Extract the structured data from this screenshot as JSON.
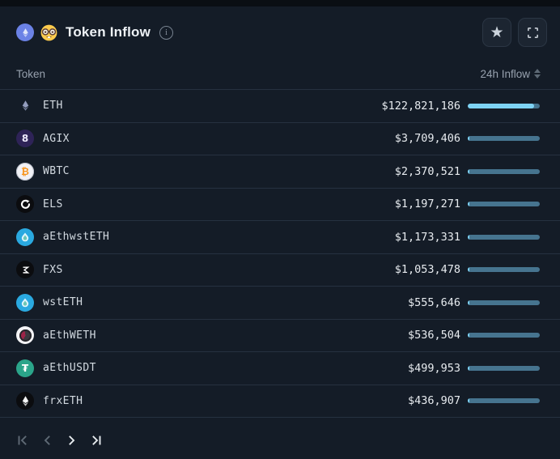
{
  "header": {
    "title": "Token Inflow",
    "title_icons": [
      "eth-coin-badge",
      "nerd-face-emoji"
    ],
    "info_glyph": "i"
  },
  "toolbar": {
    "star_glyph": "★",
    "buttons": [
      "favorite",
      "expand"
    ]
  },
  "table": {
    "columns": {
      "token": "Token",
      "inflow": "24h Inflow"
    },
    "bar": {
      "fill": "#7ed3f4",
      "track": "#46748f",
      "max": 122821186,
      "max_fill_pct": 92,
      "min_fill_pct": 2
    },
    "rows": [
      {
        "symbol": "ETH",
        "value": "$122,821,186",
        "value_num": 122821186,
        "icon": {
          "name": "eth-logo",
          "type": "eth",
          "bg": "transparent",
          "fg": "#9aa3c4"
        }
      },
      {
        "symbol": "AGIX",
        "value": "$3,709,406",
        "value_num": 3709406,
        "icon": {
          "name": "agix-logo",
          "type": "text",
          "bg": "#2e2357",
          "fg": "#ece8fb",
          "glyph": "8"
        }
      },
      {
        "symbol": "WBTC",
        "value": "$2,370,521",
        "value_num": 2370521,
        "icon": {
          "name": "wbtc-logo",
          "type": "text",
          "bg": "#f1f1f6",
          "fg": "#f7931a",
          "glyph": "₿",
          "border": "#b9bec9"
        }
      },
      {
        "symbol": "ELS",
        "value": "$1,197,271",
        "value_num": 1197271,
        "icon": {
          "name": "els-logo",
          "type": "ring",
          "bg": "#0b0c0f",
          "fg": "#ffffff"
        }
      },
      {
        "symbol": "aEthwstETH",
        "value": "$1,173,331",
        "value_num": 1173331,
        "icon": {
          "name": "aethwsteth-logo",
          "type": "droplet",
          "bg": "#2aa9e0",
          "fg": "#dff5fc"
        }
      },
      {
        "symbol": "FXS",
        "value": "$1,053,478",
        "value_num": 1053478,
        "icon": {
          "name": "fxs-logo",
          "type": "sigma",
          "bg": "#0b0c0f",
          "fg": "#ffffff"
        }
      },
      {
        "symbol": "wstETH",
        "value": "$555,646",
        "value_num": 555646,
        "icon": {
          "name": "wsteth-logo",
          "type": "droplet",
          "bg": "#2aa9e0",
          "fg": "#dff5fc"
        }
      },
      {
        "symbol": "aEthWETH",
        "value": "$536,504",
        "value_num": 536504,
        "icon": {
          "name": "aethweth-logo",
          "type": "weth",
          "bg": "#f3f3f5",
          "fg": "#9c2448"
        }
      },
      {
        "symbol": "aEthUSDT",
        "value": "$499,953",
        "value_num": 499953,
        "icon": {
          "name": "aethusdt-logo",
          "type": "text",
          "bg": "#2ba58a",
          "fg": "#ffffff",
          "glyph": "₮"
        }
      },
      {
        "symbol": "frxETH",
        "value": "$436,907",
        "value_num": 436907,
        "icon": {
          "name": "frxeth-logo",
          "type": "eth",
          "bg": "#0b0c0f",
          "fg": "#ffffff"
        }
      }
    ]
  },
  "pagination": {
    "buttons": [
      {
        "name": "first-page",
        "enabled": false
      },
      {
        "name": "prev-page",
        "enabled": false
      },
      {
        "name": "next-page",
        "enabled": true
      },
      {
        "name": "last-page",
        "enabled": true
      }
    ]
  }
}
